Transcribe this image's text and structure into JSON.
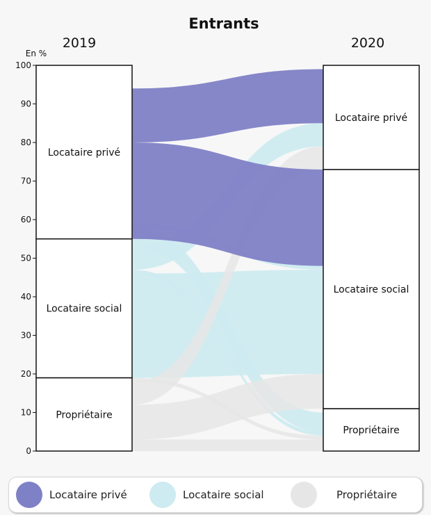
{
  "chart_data": {
    "type": "sankey",
    "title": "Entrants",
    "unit_label": "En %",
    "left_year": "2019",
    "right_year": "2020",
    "ylim": [
      0,
      100
    ],
    "yticks": [
      "0",
      "10",
      "20",
      "30",
      "40",
      "50",
      "60",
      "70",
      "80",
      "90",
      "100"
    ],
    "categories": [
      "Propriétaire",
      "Locataire social",
      "Locataire privé"
    ],
    "left_values": [
      19,
      36,
      45
    ],
    "right_values": [
      11,
      62,
      27
    ],
    "colors": {
      "Locataire privé": "#7f81c6",
      "Locataire social": "#cdebf0",
      "Propriétaire": "#e6e6e6"
    },
    "flows": [
      {
        "from": "Propriétaire",
        "to": "Propriétaire",
        "value": 3
      },
      {
        "from": "Propriétaire",
        "to": "Locataire social",
        "value": 9
      },
      {
        "from": "Propriétaire",
        "to": "Locataire privé",
        "value": 6
      },
      {
        "from": "Propriétaire",
        "to": "Propriétaire",
        "value": 1
      },
      {
        "from": "Locataire social",
        "to": "Locataire social",
        "value": 27
      },
      {
        "from": "Locataire social",
        "to": "Propriétaire",
        "value": 1
      },
      {
        "from": "Locataire social",
        "to": "Locataire privé",
        "value": 6
      },
      {
        "from": "Locataire social",
        "to": "Propriétaire",
        "value": 5
      },
      {
        "from": "Locataire social",
        "to": "Locataire social",
        "value": 1
      },
      {
        "from": "Locataire privé",
        "to": "Locataire social",
        "value": 25
      },
      {
        "from": "Locataire privé",
        "to": "Locataire privé",
        "value": 14
      }
    ]
  },
  "legend": [
    {
      "label": "Locataire privé",
      "color": "#7f81c6"
    },
    {
      "label": "Locataire social",
      "color": "#cdebf0"
    },
    {
      "label": "Propriétaire",
      "color": "#e6e6e6"
    }
  ]
}
